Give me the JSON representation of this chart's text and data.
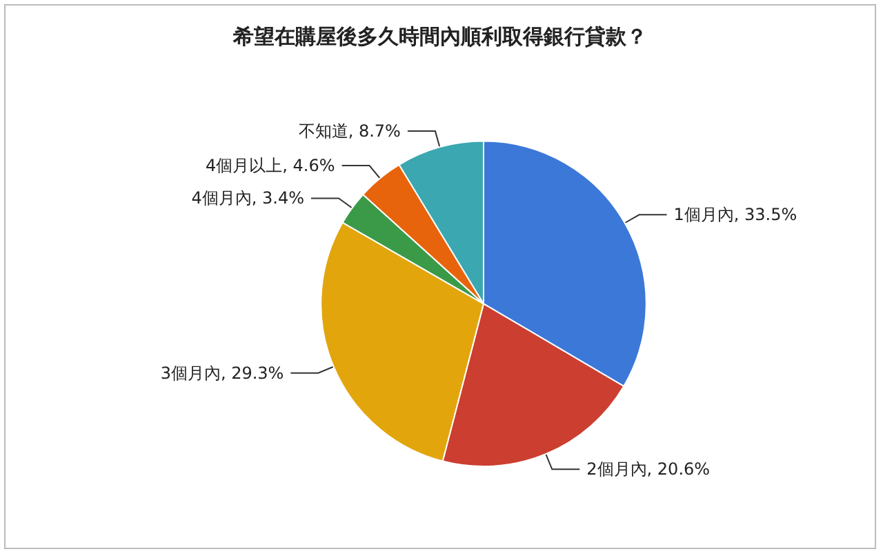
{
  "chart_data": {
    "type": "pie",
    "title": "希望在購屋後多久時間內順利取得銀行貸款？",
    "categories": [
      "1個月內",
      "2個月內",
      "3個月內",
      "4個月內",
      "4個月以上",
      "不知道"
    ],
    "values": [
      33.5,
      20.6,
      29.3,
      3.4,
      4.6,
      8.7
    ],
    "value_labels": [
      "33.5%",
      "20.6%",
      "29.3%",
      "3.4%",
      "4.6%",
      "8.7%"
    ],
    "colors": [
      "#3c78d8",
      "#cc3e30",
      "#e2a50c",
      "#3a9a48",
      "#e8640c",
      "#3ba7b0"
    ],
    "legend": false
  }
}
